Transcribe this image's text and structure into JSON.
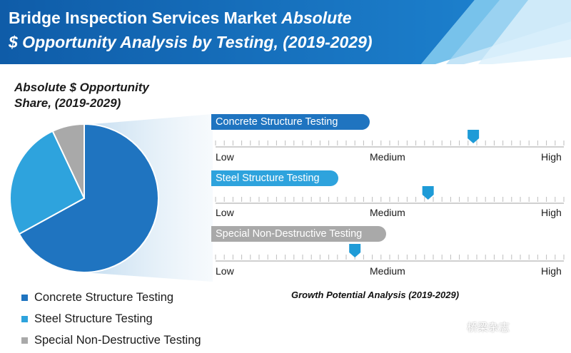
{
  "header": {
    "title_bold": "Bridge Inspection Services Market",
    "title_italic_1": "Absolute",
    "title_italic_2": "$ Opportunity Analysis by Testing, (2019-2029)"
  },
  "share_section": {
    "title_line1": "Absolute $ Opportunity",
    "title_line2": "Share, (2019-2029)"
  },
  "growth_section": {
    "title": "Growth Potential Analysis (2019-2029)",
    "scale_labels": [
      "Low",
      "Medium",
      "High"
    ]
  },
  "watermark": "桥梁杂志",
  "colors": {
    "concrete": "#1f74c0",
    "steel": "#2ea3dd",
    "special": "#a9a9a9",
    "banner": "#1565b0",
    "marker": "#1e9bd7"
  },
  "chart_data": [
    {
      "type": "pie",
      "title": "Absolute $ Opportunity Share, (2019-2029)",
      "categories": [
        "Concrete Structure Testing",
        "Steel Structure Testing",
        "Special Non-Destructive Testing"
      ],
      "values": [
        67,
        26,
        7
      ],
      "legend": "bottom-left"
    },
    {
      "type": "scatter",
      "title": "Growth Potential Analysis (2019-2029)",
      "scale": [
        "Low",
        "Medium",
        "High"
      ],
      "range": [
        0,
        1
      ],
      "series": [
        {
          "name": "Concrete Structure Testing",
          "value": 0.74
        },
        {
          "name": "Steel Structure Testing",
          "value": 0.61
        },
        {
          "name": "Special Non-Destructive Testing",
          "value": 0.4
        }
      ]
    }
  ]
}
